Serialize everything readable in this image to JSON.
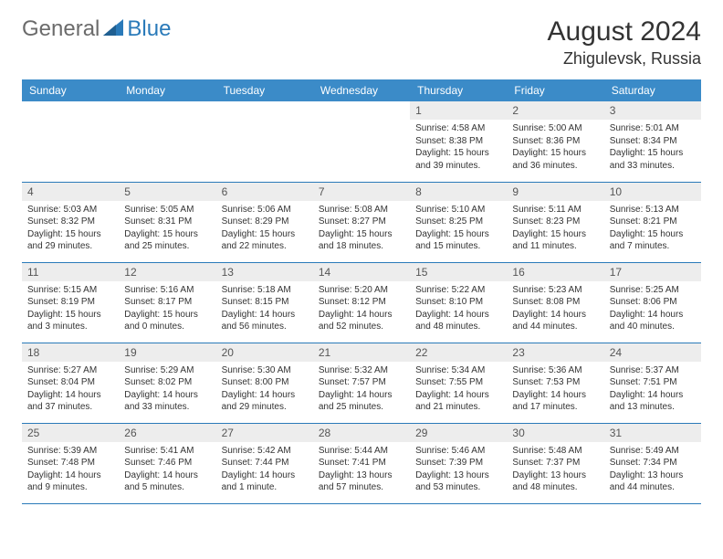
{
  "logo": {
    "text_gray": "General",
    "text_blue": "Blue"
  },
  "title": "August 2024",
  "location": "Zhigulevsk, Russia",
  "colors": {
    "header_bg": "#3b8bc8",
    "header_fg": "#ffffff",
    "daynum_bg": "#ededed",
    "border": "#2a7ab9",
    "logo_gray": "#6b6b6b",
    "logo_blue": "#2a7ab9"
  },
  "weekdays": [
    "Sunday",
    "Monday",
    "Tuesday",
    "Wednesday",
    "Thursday",
    "Friday",
    "Saturday"
  ],
  "weeks": [
    [
      {
        "empty": true
      },
      {
        "empty": true
      },
      {
        "empty": true
      },
      {
        "empty": true
      },
      {
        "day": "1",
        "sunrise": "Sunrise: 4:58 AM",
        "sunset": "Sunset: 8:38 PM",
        "daylight": "Daylight: 15 hours and 39 minutes."
      },
      {
        "day": "2",
        "sunrise": "Sunrise: 5:00 AM",
        "sunset": "Sunset: 8:36 PM",
        "daylight": "Daylight: 15 hours and 36 minutes."
      },
      {
        "day": "3",
        "sunrise": "Sunrise: 5:01 AM",
        "sunset": "Sunset: 8:34 PM",
        "daylight": "Daylight: 15 hours and 33 minutes."
      }
    ],
    [
      {
        "day": "4",
        "sunrise": "Sunrise: 5:03 AM",
        "sunset": "Sunset: 8:32 PM",
        "daylight": "Daylight: 15 hours and 29 minutes."
      },
      {
        "day": "5",
        "sunrise": "Sunrise: 5:05 AM",
        "sunset": "Sunset: 8:31 PM",
        "daylight": "Daylight: 15 hours and 25 minutes."
      },
      {
        "day": "6",
        "sunrise": "Sunrise: 5:06 AM",
        "sunset": "Sunset: 8:29 PM",
        "daylight": "Daylight: 15 hours and 22 minutes."
      },
      {
        "day": "7",
        "sunrise": "Sunrise: 5:08 AM",
        "sunset": "Sunset: 8:27 PM",
        "daylight": "Daylight: 15 hours and 18 minutes."
      },
      {
        "day": "8",
        "sunrise": "Sunrise: 5:10 AM",
        "sunset": "Sunset: 8:25 PM",
        "daylight": "Daylight: 15 hours and 15 minutes."
      },
      {
        "day": "9",
        "sunrise": "Sunrise: 5:11 AM",
        "sunset": "Sunset: 8:23 PM",
        "daylight": "Daylight: 15 hours and 11 minutes."
      },
      {
        "day": "10",
        "sunrise": "Sunrise: 5:13 AM",
        "sunset": "Sunset: 8:21 PM",
        "daylight": "Daylight: 15 hours and 7 minutes."
      }
    ],
    [
      {
        "day": "11",
        "sunrise": "Sunrise: 5:15 AM",
        "sunset": "Sunset: 8:19 PM",
        "daylight": "Daylight: 15 hours and 3 minutes."
      },
      {
        "day": "12",
        "sunrise": "Sunrise: 5:16 AM",
        "sunset": "Sunset: 8:17 PM",
        "daylight": "Daylight: 15 hours and 0 minutes."
      },
      {
        "day": "13",
        "sunrise": "Sunrise: 5:18 AM",
        "sunset": "Sunset: 8:15 PM",
        "daylight": "Daylight: 14 hours and 56 minutes."
      },
      {
        "day": "14",
        "sunrise": "Sunrise: 5:20 AM",
        "sunset": "Sunset: 8:12 PM",
        "daylight": "Daylight: 14 hours and 52 minutes."
      },
      {
        "day": "15",
        "sunrise": "Sunrise: 5:22 AM",
        "sunset": "Sunset: 8:10 PM",
        "daylight": "Daylight: 14 hours and 48 minutes."
      },
      {
        "day": "16",
        "sunrise": "Sunrise: 5:23 AM",
        "sunset": "Sunset: 8:08 PM",
        "daylight": "Daylight: 14 hours and 44 minutes."
      },
      {
        "day": "17",
        "sunrise": "Sunrise: 5:25 AM",
        "sunset": "Sunset: 8:06 PM",
        "daylight": "Daylight: 14 hours and 40 minutes."
      }
    ],
    [
      {
        "day": "18",
        "sunrise": "Sunrise: 5:27 AM",
        "sunset": "Sunset: 8:04 PM",
        "daylight": "Daylight: 14 hours and 37 minutes."
      },
      {
        "day": "19",
        "sunrise": "Sunrise: 5:29 AM",
        "sunset": "Sunset: 8:02 PM",
        "daylight": "Daylight: 14 hours and 33 minutes."
      },
      {
        "day": "20",
        "sunrise": "Sunrise: 5:30 AM",
        "sunset": "Sunset: 8:00 PM",
        "daylight": "Daylight: 14 hours and 29 minutes."
      },
      {
        "day": "21",
        "sunrise": "Sunrise: 5:32 AM",
        "sunset": "Sunset: 7:57 PM",
        "daylight": "Daylight: 14 hours and 25 minutes."
      },
      {
        "day": "22",
        "sunrise": "Sunrise: 5:34 AM",
        "sunset": "Sunset: 7:55 PM",
        "daylight": "Daylight: 14 hours and 21 minutes."
      },
      {
        "day": "23",
        "sunrise": "Sunrise: 5:36 AM",
        "sunset": "Sunset: 7:53 PM",
        "daylight": "Daylight: 14 hours and 17 minutes."
      },
      {
        "day": "24",
        "sunrise": "Sunrise: 5:37 AM",
        "sunset": "Sunset: 7:51 PM",
        "daylight": "Daylight: 14 hours and 13 minutes."
      }
    ],
    [
      {
        "day": "25",
        "sunrise": "Sunrise: 5:39 AM",
        "sunset": "Sunset: 7:48 PM",
        "daylight": "Daylight: 14 hours and 9 minutes."
      },
      {
        "day": "26",
        "sunrise": "Sunrise: 5:41 AM",
        "sunset": "Sunset: 7:46 PM",
        "daylight": "Daylight: 14 hours and 5 minutes."
      },
      {
        "day": "27",
        "sunrise": "Sunrise: 5:42 AM",
        "sunset": "Sunset: 7:44 PM",
        "daylight": "Daylight: 14 hours and 1 minute."
      },
      {
        "day": "28",
        "sunrise": "Sunrise: 5:44 AM",
        "sunset": "Sunset: 7:41 PM",
        "daylight": "Daylight: 13 hours and 57 minutes."
      },
      {
        "day": "29",
        "sunrise": "Sunrise: 5:46 AM",
        "sunset": "Sunset: 7:39 PM",
        "daylight": "Daylight: 13 hours and 53 minutes."
      },
      {
        "day": "30",
        "sunrise": "Sunrise: 5:48 AM",
        "sunset": "Sunset: 7:37 PM",
        "daylight": "Daylight: 13 hours and 48 minutes."
      },
      {
        "day": "31",
        "sunrise": "Sunrise: 5:49 AM",
        "sunset": "Sunset: 7:34 PM",
        "daylight": "Daylight: 13 hours and 44 minutes."
      }
    ]
  ]
}
